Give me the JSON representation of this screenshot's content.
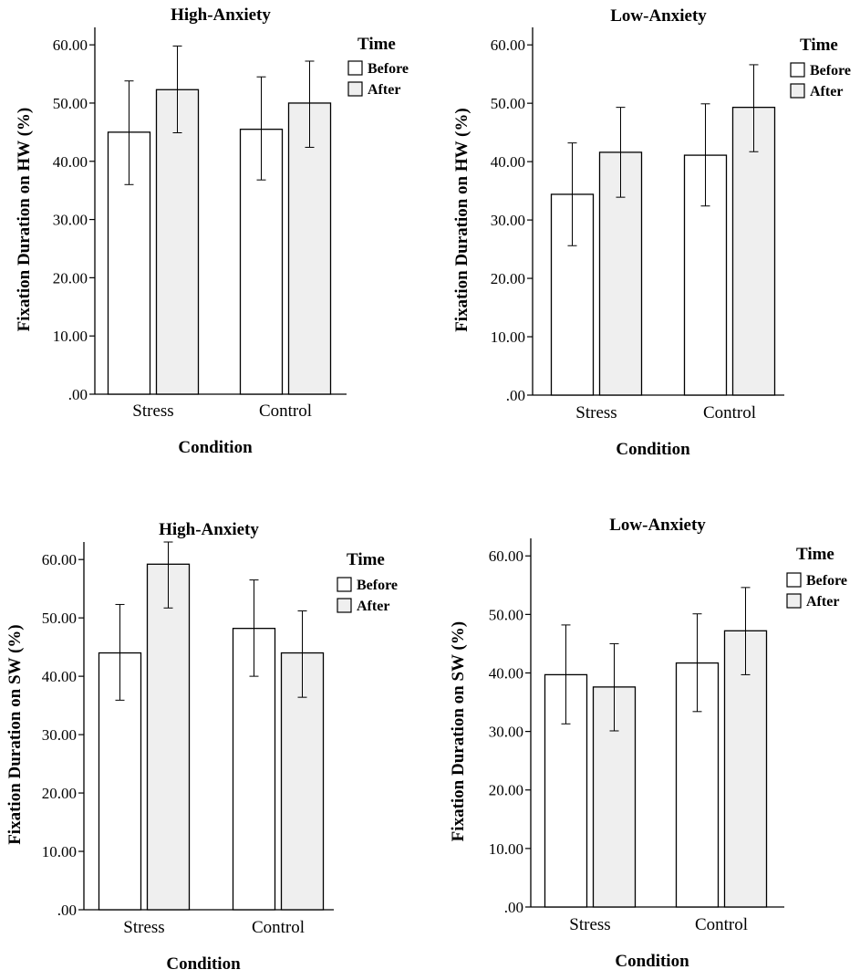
{
  "colors": {
    "before": "#ffffff",
    "after": "#efefef",
    "stroke": "#000000"
  },
  "chart_data": [
    {
      "type": "bar",
      "title": "High-Anxiety",
      "xlabel": "Condition",
      "ylabel": "Fixation Duration on HW (%)",
      "categories": [
        "Stress",
        "Control"
      ],
      "ylim": [
        0,
        63
      ],
      "ticks": [
        0,
        10,
        20,
        30,
        40,
        50,
        60
      ],
      "tick_labels": [
        ".00",
        "10.00",
        "20.00",
        "30.00",
        "40.00",
        "50.00",
        "60.00"
      ],
      "legend": {
        "title": "Time",
        "items": [
          "Before",
          "After"
        ]
      },
      "series": [
        {
          "name": "Before",
          "values": [
            45.0,
            45.5
          ],
          "err_low": [
            36.0,
            36.8
          ],
          "err_high": [
            53.8,
            54.5
          ]
        },
        {
          "name": "After",
          "values": [
            52.3,
            50.0
          ],
          "err_low": [
            44.9,
            42.4
          ],
          "err_high": [
            59.8,
            57.2
          ]
        }
      ]
    },
    {
      "type": "bar",
      "title": "Low-Anxiety",
      "xlabel": "Condition",
      "ylabel": "Fixation Duration on HW (%)",
      "categories": [
        "Stress",
        "Control"
      ],
      "ylim": [
        0,
        63
      ],
      "ticks": [
        0,
        10,
        20,
        30,
        40,
        50,
        60
      ],
      "tick_labels": [
        ".00",
        "10.00",
        "20.00",
        "30.00",
        "40.00",
        "50.00",
        "60.00"
      ],
      "legend": {
        "title": "Time",
        "items": [
          "Before",
          "After"
        ]
      },
      "series": [
        {
          "name": "Before",
          "values": [
            34.4,
            41.1
          ],
          "err_low": [
            25.6,
            32.4
          ],
          "err_high": [
            43.2,
            49.9
          ]
        },
        {
          "name": "After",
          "values": [
            41.6,
            49.3
          ],
          "err_low": [
            33.9,
            41.7
          ],
          "err_high": [
            49.3,
            56.6
          ]
        }
      ]
    },
    {
      "type": "bar",
      "title": "High-Anxiety",
      "xlabel": "Condition",
      "ylabel": "Fixation Duration on SW (%)",
      "categories": [
        "Stress",
        "Control"
      ],
      "ylim": [
        0,
        63
      ],
      "ticks": [
        0,
        10,
        20,
        30,
        40,
        50,
        60
      ],
      "tick_labels": [
        ".00",
        "10.00",
        "20.00",
        "30.00",
        "40.00",
        "50.00",
        "60.00"
      ],
      "legend": {
        "title": "Time",
        "items": [
          "Before",
          "After"
        ]
      },
      "series": [
        {
          "name": "Before",
          "values": [
            44.0,
            48.2
          ],
          "err_low": [
            35.9,
            40.0
          ],
          "err_high": [
            52.3,
            56.5
          ]
        },
        {
          "name": "After",
          "values": [
            59.2,
            44.0
          ],
          "err_low": [
            51.7,
            36.4
          ],
          "err_high": [
            63.0,
            51.2
          ]
        }
      ]
    },
    {
      "type": "bar",
      "title": "Low-Anxiety",
      "xlabel": "Condition",
      "ylabel": "Fixation Duration on SW (%)",
      "categories": [
        "Stress",
        "Control"
      ],
      "ylim": [
        0,
        63
      ],
      "ticks": [
        0,
        10,
        20,
        30,
        40,
        50,
        60
      ],
      "tick_labels": [
        ".00",
        "10.00",
        "20.00",
        "30.00",
        "40.00",
        "50.00",
        "60.00"
      ],
      "legend": {
        "title": "Time",
        "items": [
          "Before",
          "After"
        ]
      },
      "series": [
        {
          "name": "Before",
          "values": [
            39.7,
            41.7
          ],
          "err_low": [
            31.3,
            33.4
          ],
          "err_high": [
            48.2,
            50.1
          ]
        },
        {
          "name": "After",
          "values": [
            37.6,
            47.2
          ],
          "err_low": [
            30.1,
            39.7
          ],
          "err_high": [
            45.0,
            54.6
          ]
        }
      ]
    }
  ]
}
